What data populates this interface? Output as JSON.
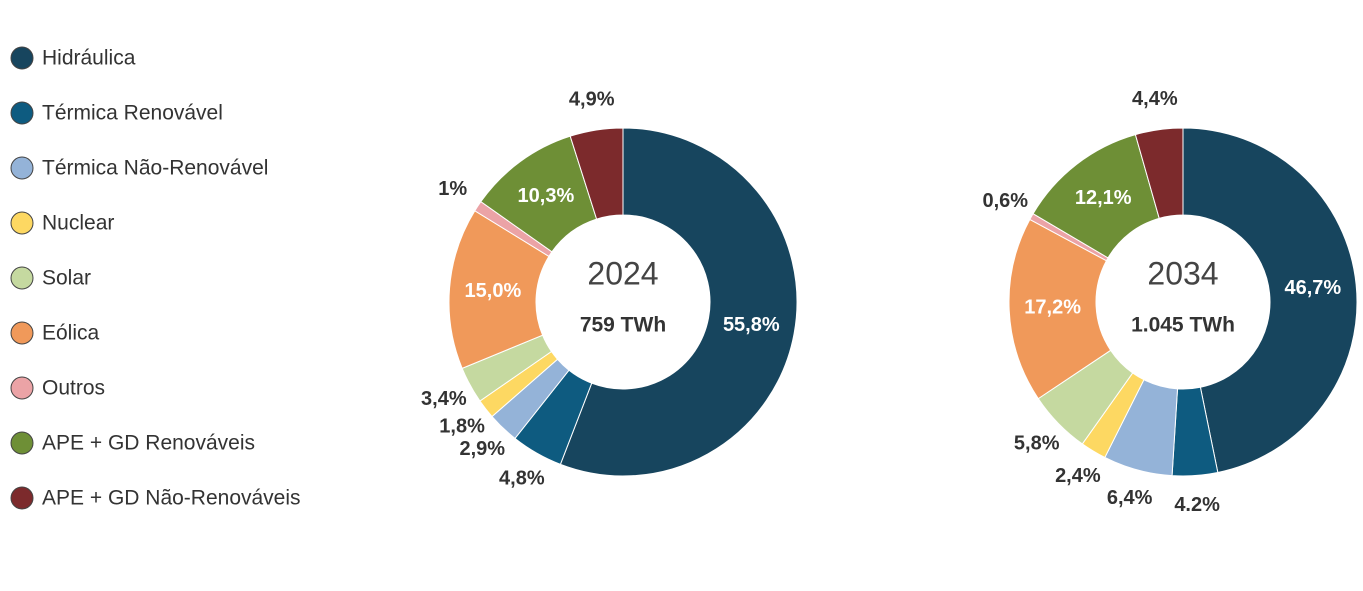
{
  "chart_data": [
    {
      "type": "pie",
      "title": "2024",
      "subtitle": "759 TWh",
      "categories": [
        "Hidráulica",
        "Térmica Renovável",
        "Térmica Não-Renovável",
        "Nuclear",
        "Solar",
        "Eólica",
        "Outros",
        "APE + GD Renováveis",
        "APE + GD Não-Renováveis"
      ],
      "colors": [
        "#17455e",
        "#0e5b80",
        "#94b3d8",
        "#fdd862",
        "#c5d9a0",
        "#f0995a",
        "#eba3a6",
        "#6e8f36",
        "#7c2a2c"
      ],
      "values": [
        55.8,
        4.8,
        2.9,
        1.8,
        3.4,
        15.0,
        1,
        10.3,
        4.9
      ],
      "value_labels": [
        "55,8%",
        "4,8%",
        "2,9%",
        "1,8%",
        "3,4%",
        "15,0%",
        "1%",
        "10,3%",
        "4,9%"
      ]
    },
    {
      "type": "pie",
      "title": "2034",
      "subtitle": "1.045 TWh",
      "values": [
        46.7,
        4.2,
        6.4,
        2.4,
        5.8,
        17.2,
        0.6,
        12.1,
        4.4
      ],
      "value_labels": [
        "46,7%",
        "4.2%",
        "6,4%",
        "2,4%",
        "5,8%",
        "17,2%",
        "0,6%",
        "12,1%",
        "4,4%"
      ]
    }
  ]
}
